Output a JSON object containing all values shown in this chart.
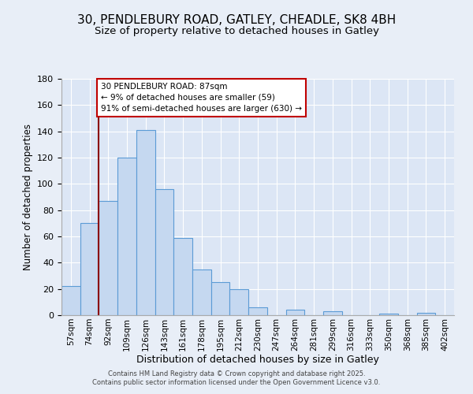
{
  "title_line1": "30, PENDLEBURY ROAD, GATLEY, CHEADLE, SK8 4BH",
  "title_line2": "Size of property relative to detached houses in Gatley",
  "xlabel": "Distribution of detached houses by size in Gatley",
  "ylabel": "Number of detached properties",
  "bar_labels": [
    "57sqm",
    "74sqm",
    "92sqm",
    "109sqm",
    "126sqm",
    "143sqm",
    "161sqm",
    "178sqm",
    "195sqm",
    "212sqm",
    "230sqm",
    "247sqm",
    "264sqm",
    "281sqm",
    "299sqm",
    "316sqm",
    "333sqm",
    "350sqm",
    "368sqm",
    "385sqm",
    "402sqm"
  ],
  "bar_values": [
    22,
    70,
    87,
    120,
    141,
    96,
    59,
    35,
    25,
    20,
    6,
    0,
    4,
    0,
    3,
    0,
    0,
    1,
    0,
    2,
    0
  ],
  "bar_color": "#c5d8f0",
  "bar_edge_color": "#5b9bd5",
  "background_color": "#e8eef7",
  "plot_bg_color": "#dce6f5",
  "grid_color": "#ffffff",
  "vline_x": 1.5,
  "vline_color": "#8b0000",
  "annotation_text": "30 PENDLEBURY ROAD: 87sqm\n← 9% of detached houses are smaller (59)\n91% of semi-detached houses are larger (630) →",
  "annotation_box_color": "#ffffff",
  "annotation_box_edge": "#c00000",
  "ylim": [
    0,
    180
  ],
  "yticks": [
    0,
    20,
    40,
    60,
    80,
    100,
    120,
    140,
    160,
    180
  ],
  "footer_line1": "Contains HM Land Registry data © Crown copyright and database right 2025.",
  "footer_line2": "Contains public sector information licensed under the Open Government Licence v3.0."
}
